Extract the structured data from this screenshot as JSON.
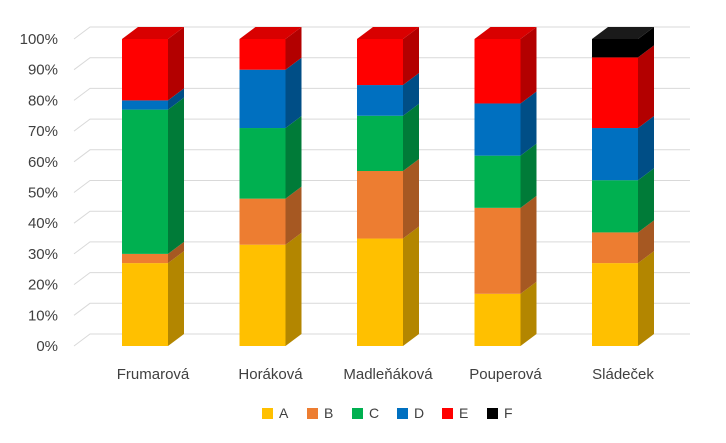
{
  "chart_data": {
    "type": "bar",
    "stacked": true,
    "percent": true,
    "three_d": true,
    "categories": [
      "Frumarová",
      "Horáková",
      "Madleňáková",
      "Pouperová",
      "Sládeček"
    ],
    "series": [
      {
        "name": "A",
        "color": "#FFC000",
        "values": [
          27,
          33,
          35,
          17,
          27
        ]
      },
      {
        "name": "B",
        "color": "#ED7D31",
        "values": [
          3,
          15,
          22,
          28,
          10
        ]
      },
      {
        "name": "C",
        "color": "#00B050",
        "values": [
          47,
          23,
          18,
          17,
          17
        ]
      },
      {
        "name": "D",
        "color": "#0070C0",
        "values": [
          3,
          19,
          10,
          17,
          17
        ]
      },
      {
        "name": "E",
        "color": "#FF0000",
        "values": [
          20,
          10,
          15,
          21,
          23
        ]
      },
      {
        "name": "F",
        "color": "#000000",
        "values": [
          0,
          0,
          0,
          0,
          6
        ]
      }
    ],
    "yticks": [
      "0%",
      "10%",
      "20%",
      "30%",
      "40%",
      "50%",
      "60%",
      "70%",
      "80%",
      "90%",
      "100%"
    ],
    "ylim": [
      0,
      100
    ],
    "grid": true,
    "legend": "bottom",
    "title": "",
    "xlabel": "",
    "ylabel": ""
  }
}
